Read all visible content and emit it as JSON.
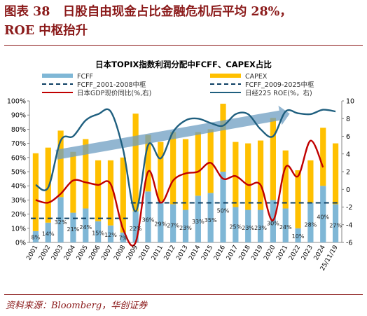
{
  "header": {
    "figure_no": "图表 38",
    "title_line1": "日股自由现金占比金融危机后平均 28%，",
    "title_line2": "ROE 中枢抬升"
  },
  "source": "资料来源：Bloomberg，华创证券",
  "colors": {
    "title": "#8b1a1a",
    "fcff_bar": "#7fb7d6",
    "capex_bar": "#ffc000",
    "fcff_avg": "#0d3f63",
    "gdp_line": "#c00000",
    "roe_line": "#1f5f7f",
    "arrow": "#6d9ec2"
  },
  "chart_data": {
    "type": "bar",
    "title": "日本TOPIX指数利润分配中FCFF、CAPEX占比",
    "categories": [
      "2001",
      "2002",
      "2003",
      "2004",
      "2005",
      "2006",
      "2007",
      "2008",
      "2009",
      "2010",
      "2011",
      "2012",
      "2013",
      "2014",
      "2015",
      "2016",
      "2017",
      "2018",
      "2019",
      "2020",
      "2021",
      "2022",
      "2023",
      "2024",
      "25/11/19"
    ],
    "series": [
      {
        "name": "FCFF",
        "axis": "left",
        "kind": "stacked-bar",
        "values": [
          0.08,
          0.14,
          0.32,
          0.21,
          0.24,
          0.15,
          0.12,
          0.07,
          0.22,
          0.36,
          0.29,
          0.27,
          0.23,
          0.33,
          0.35,
          0.5,
          0.25,
          0.23,
          0.23,
          0.3,
          0.24,
          0.1,
          0.28,
          0.4,
          0.27
        ],
        "labels": [
          "8%",
          "14%",
          "32%",
          "21%",
          "24%",
          "15%",
          "12%",
          "7%",
          "22%",
          "36%",
          "29%",
          "27%",
          "23%",
          "33%",
          "35%",
          "50%",
          "25%",
          "23%",
          "23%",
          "30%",
          "24%",
          "10%",
          "28%",
          "40%",
          "27%"
        ]
      },
      {
        "name": "CAPEX",
        "axis": "left",
        "kind": "stacked-bar",
        "values": [
          0.55,
          0.53,
          0.47,
          0.43,
          0.49,
          0.43,
          0.46,
          0.53,
          0.69,
          0.4,
          0.42,
          0.51,
          0.5,
          0.45,
          0.45,
          0.48,
          0.46,
          0.47,
          0.49,
          0.58,
          0.41,
          0.41,
          0.3,
          0.41,
          0.43
        ]
      },
      {
        "name": "FCFF_2001-2008中枢",
        "axis": "left",
        "kind": "dashed",
        "value": 0.17,
        "range": [
          "2001",
          "2008"
        ]
      },
      {
        "name": "FCFF_2009-2025中枢",
        "axis": "left",
        "kind": "dashed",
        "value": 0.28,
        "range": [
          "2009",
          "25/11/19"
        ]
      },
      {
        "name": "日本GDP现价同比(%,右)",
        "axis": "right",
        "kind": "line",
        "values": [
          -1.2,
          -1.5,
          -0.5,
          1.0,
          0.8,
          0.5,
          0.6,
          -4.5,
          -6.0,
          2.0,
          -1.5,
          1.0,
          1.8,
          2.0,
          3.0,
          1.2,
          1.5,
          0.5,
          0.5,
          -3.5,
          2.5,
          1.5,
          5.5,
          2.5,
          null
        ]
      },
      {
        "name": "日经225 ROE(%，右)",
        "axis": "right",
        "kind": "line",
        "values": [
          0.5,
          0.2,
          5.5,
          6.0,
          7.8,
          8.5,
          8.8,
          4.5,
          -2.5,
          5.0,
          3.5,
          6.5,
          7.8,
          8.0,
          7.5,
          7.2,
          8.5,
          8.5,
          6.8,
          6.0,
          8.8,
          8.6,
          8.5,
          9.0,
          8.8
        ]
      }
    ],
    "yleft": {
      "min": 0,
      "max": 1,
      "ticks": [
        "0%",
        "10%",
        "20%",
        "30%",
        "40%",
        "50%",
        "60%",
        "70%",
        "80%",
        "90%",
        "100%"
      ]
    },
    "yright": {
      "min": -6,
      "max": 10,
      "ticks": [
        "-6",
        "-4",
        "-2",
        "0",
        "2",
        "4",
        "6",
        "8",
        "10"
      ]
    },
    "legend": {
      "placement": "top",
      "entries": [
        {
          "label": "FCFF",
          "series": "FCFF",
          "marker": "bar"
        },
        {
          "label": "CAPEX",
          "series": "CAPEX",
          "marker": "bar"
        },
        {
          "label": "FCFF_2001-2008中枢",
          "series": "FCFF_2001-2008中枢",
          "marker": "dash"
        },
        {
          "label": "FCFF_2009-2025中枢",
          "series": "FCFF_2009-2025中枢",
          "marker": "dash"
        },
        {
          "label": "日本GDP现价同比(%,右)",
          "series": "日本GDP现价同比(%,右)",
          "marker": "line"
        },
        {
          "label": "日经225 ROE(%，右)",
          "series": "日经225 ROE(%，右)",
          "marker": "line"
        }
      ]
    },
    "annotation": {
      "kind": "trend-arrow",
      "from": "2003",
      "to": "2021",
      "y_from": 0.62,
      "y_to": 0.91
    },
    "grid": false
  }
}
